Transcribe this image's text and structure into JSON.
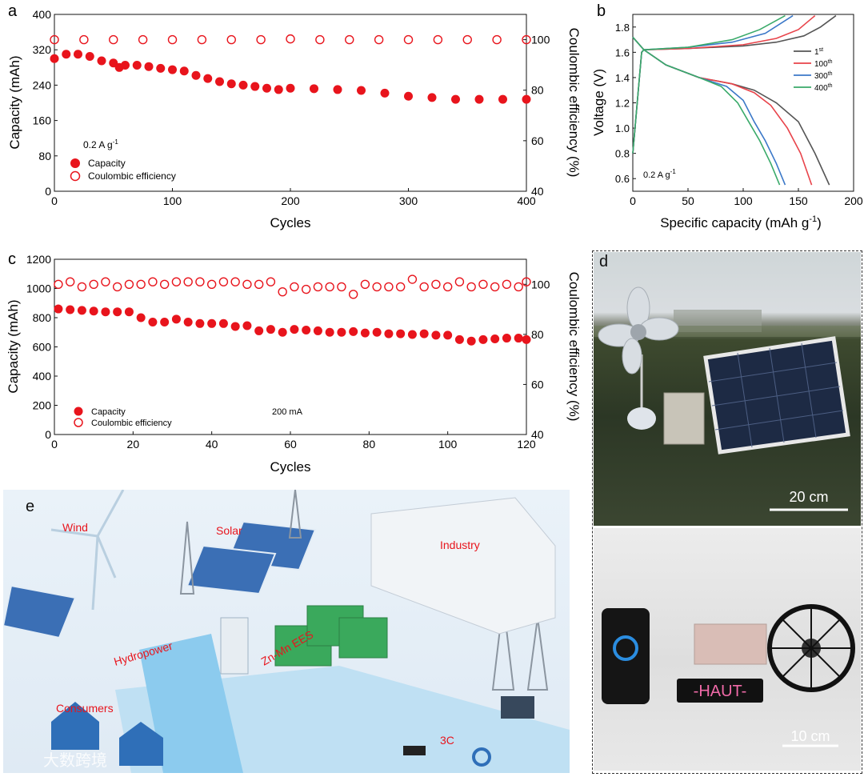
{
  "panels": {
    "a": "a",
    "b": "b",
    "c": "c",
    "d": "d",
    "e": "e"
  },
  "colors": {
    "capacity": "#e8141c",
    "ce": "#e8141c",
    "c1": "#555555",
    "c100": "#e8434a",
    "c300": "#3b78c8",
    "c400": "#3aaa6a"
  },
  "chart_data": [
    {
      "id": "a",
      "type": "scatter",
      "xlabel": "Cycles",
      "ylabel": "Capacity  (mAh)",
      "y2label": "Coulombic efficiency (%)",
      "xlim": [
        0,
        400
      ],
      "ylim": [
        0,
        400
      ],
      "y2lim": [
        40,
        110
      ],
      "xticks": [
        0,
        100,
        200,
        300,
        400
      ],
      "yticks": [
        0,
        80,
        160,
        240,
        320,
        400
      ],
      "y2ticks": [
        40,
        60,
        80,
        100
      ],
      "annotation": "0.2 A g",
      "annotation_sup": "-1",
      "legend": [
        "Capacity",
        "Coulombic efficiency"
      ],
      "series": [
        {
          "name": "Capacity",
          "axis": "left",
          "filled": true,
          "x": [
            0,
            10,
            20,
            30,
            40,
            50,
            55,
            60,
            70,
            80,
            90,
            100,
            110,
            120,
            130,
            140,
            150,
            160,
            170,
            180,
            190,
            200,
            220,
            240,
            260,
            280,
            300,
            320,
            340,
            360,
            380,
            400
          ],
          "y": [
            300,
            310,
            310,
            305,
            295,
            290,
            280,
            285,
            285,
            282,
            278,
            275,
            272,
            262,
            255,
            248,
            243,
            240,
            237,
            233,
            230,
            233,
            232,
            230,
            228,
            222,
            215,
            212,
            208,
            208,
            208,
            208
          ]
        },
        {
          "name": "Coulombic efficiency",
          "axis": "right",
          "filled": false,
          "x": [
            0,
            25,
            50,
            75,
            100,
            125,
            150,
            175,
            200,
            225,
            250,
            275,
            300,
            325,
            350,
            375,
            400
          ],
          "y": [
            100,
            100,
            100,
            100,
            100,
            100,
            100,
            100,
            100.3,
            100,
            100,
            100,
            100,
            100,
            100,
            100,
            100
          ]
        }
      ]
    },
    {
      "id": "b",
      "type": "line",
      "xlabel": "Specific capacity (mAh g",
      "xlabel_sup": "-1",
      "xlabel_end": ")",
      "ylabel": "Voltage (V)",
      "xlim": [
        0,
        200
      ],
      "ylim": [
        0.5,
        1.9
      ],
      "xticks": [
        0,
        50,
        100,
        150,
        200
      ],
      "yticks": [
        0.6,
        0.8,
        1.0,
        1.2,
        1.4,
        1.6,
        1.8
      ],
      "annotation": "0.2 A g",
      "annotation_sup": "-1",
      "series": [
        {
          "name": "1",
          "sup": "st",
          "color": "#555555",
          "x": [
            0,
            10,
            30,
            60,
            90,
            110,
            130,
            150,
            165,
            178
          ],
          "y": [
            1.72,
            1.62,
            1.5,
            1.4,
            1.35,
            1.3,
            1.2,
            1.05,
            0.8,
            0.55
          ],
          "cx": [
            0,
            8,
            10,
            50,
            100,
            130,
            155,
            170,
            184
          ],
          "cy": [
            0.8,
            1.6,
            1.62,
            1.63,
            1.65,
            1.68,
            1.73,
            1.8,
            1.89
          ]
        },
        {
          "name": "100",
          "sup": "th",
          "color": "#e8434a",
          "x": [
            0,
            10,
            30,
            60,
            90,
            110,
            125,
            140,
            152,
            162
          ],
          "y": [
            1.72,
            1.62,
            1.5,
            1.4,
            1.35,
            1.28,
            1.18,
            1.0,
            0.8,
            0.55
          ],
          "cx": [
            0,
            8,
            10,
            50,
            100,
            130,
            150,
            165
          ],
          "cy": [
            0.8,
            1.6,
            1.62,
            1.63,
            1.66,
            1.71,
            1.78,
            1.89
          ]
        },
        {
          "name": "300",
          "sup": "th",
          "color": "#3b78c8",
          "x": [
            0,
            10,
            30,
            60,
            85,
            100,
            110,
            120,
            130,
            138
          ],
          "y": [
            1.72,
            1.62,
            1.5,
            1.4,
            1.33,
            1.22,
            1.05,
            0.9,
            0.72,
            0.55
          ],
          "cx": [
            0,
            8,
            10,
            50,
            90,
            120,
            145
          ],
          "cy": [
            0.8,
            1.6,
            1.62,
            1.64,
            1.68,
            1.75,
            1.89
          ]
        },
        {
          "name": "400",
          "sup": "th",
          "color": "#3aaa6a",
          "x": [
            0,
            10,
            30,
            60,
            80,
            95,
            105,
            115,
            125,
            133
          ],
          "y": [
            1.72,
            1.62,
            1.5,
            1.4,
            1.33,
            1.2,
            1.05,
            0.9,
            0.72,
            0.55
          ],
          "cx": [
            0,
            8,
            10,
            50,
            90,
            115,
            138
          ],
          "cy": [
            0.8,
            1.6,
            1.62,
            1.64,
            1.7,
            1.78,
            1.89
          ]
        }
      ]
    },
    {
      "id": "c",
      "type": "scatter",
      "xlabel": "Cycles",
      "ylabel": "Capacity (mAh)",
      "y2label": "Coulombic efficiency (%)",
      "xlim": [
        0,
        120
      ],
      "ylim": [
        0,
        1200
      ],
      "y2lim": [
        40,
        110
      ],
      "xticks": [
        0,
        20,
        40,
        60,
        80,
        100,
        120
      ],
      "yticks": [
        0,
        200,
        400,
        600,
        800,
        1000,
        1200
      ],
      "y2ticks": [
        40,
        60,
        80,
        100
      ],
      "annotation": "200 mA",
      "legend": [
        "Capacity",
        "Coulombic efficiency"
      ],
      "series": [
        {
          "name": "Capacity",
          "axis": "left",
          "filled": true,
          "x": [
            1,
            4,
            7,
            10,
            13,
            16,
            19,
            22,
            25,
            28,
            31,
            34,
            37,
            40,
            43,
            46,
            49,
            52,
            55,
            58,
            61,
            64,
            67,
            70,
            73,
            76,
            79,
            82,
            85,
            88,
            91,
            94,
            97,
            100,
            103,
            106,
            109,
            112,
            115,
            118,
            120
          ],
          "y": [
            860,
            855,
            850,
            845,
            840,
            840,
            840,
            800,
            770,
            770,
            790,
            770,
            760,
            760,
            760,
            740,
            745,
            710,
            720,
            700,
            720,
            715,
            710,
            700,
            700,
            705,
            695,
            700,
            690,
            690,
            685,
            690,
            680,
            680,
            650,
            640,
            650,
            655,
            660,
            660,
            650
          ]
        },
        {
          "name": "Coulombic efficiency",
          "axis": "right",
          "filled": false,
          "x": [
            1,
            4,
            7,
            10,
            13,
            16,
            19,
            22,
            25,
            28,
            31,
            34,
            37,
            40,
            43,
            46,
            49,
            52,
            55,
            58,
            61,
            64,
            67,
            70,
            73,
            76,
            79,
            82,
            85,
            88,
            91,
            94,
            97,
            100,
            103,
            106,
            109,
            112,
            115,
            118,
            120
          ],
          "y": [
            100,
            101,
            99,
            100,
            101,
            99,
            100,
            100,
            101,
            100,
            101,
            101,
            101,
            100,
            101,
            101,
            100,
            100,
            101,
            97,
            99,
            98,
            99,
            99,
            99,
            96,
            100,
            99,
            99,
            99,
            102,
            99,
            100,
            99,
            101,
            99,
            100,
            99,
            100,
            99,
            101
          ]
        }
      ]
    }
  ],
  "photo_d": {
    "scale_top": "20 cm",
    "sign": "-HAUT-",
    "scale_bottom": "10 cm"
  },
  "panel_e": {
    "labels": {
      "wind": "Wind",
      "solar": "Solar",
      "industry": "Industry",
      "hydro": "Hydropower",
      "ees": "Zn-Mn EES",
      "consumers": "Consumers",
      "c3": "3C"
    },
    "watermark": "大数跨境"
  }
}
